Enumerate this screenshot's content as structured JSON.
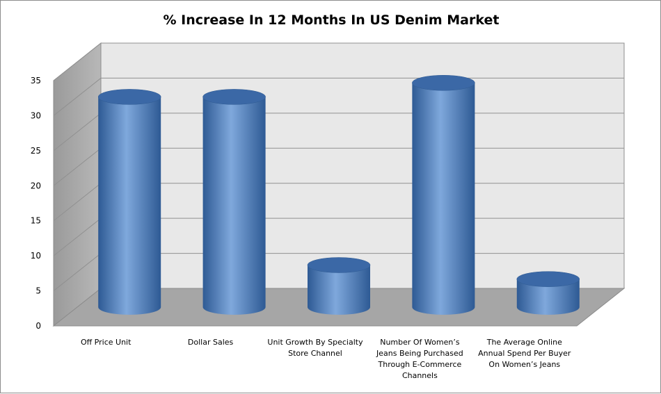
{
  "chart_data": {
    "type": "bar",
    "style": "3d-cylinder",
    "title": "% Increase In 12 Months In US Denim Market",
    "xlabel": "",
    "ylabel": "",
    "ylim": [
      0,
      35
    ],
    "yticks": [
      "0",
      "5",
      "10",
      "15",
      "20",
      "25",
      "30",
      "35"
    ],
    "grid": true,
    "legend": "none",
    "categories": [
      "Off Price Unit",
      "Dollar Sales",
      "Unit Growth  By Specialty Store Channel",
      "Number Of Women's Jeans Being Purchased Through E-Commerce Channels",
      "The Average Online Annual Spend Per Buyer On Women's Jeans"
    ],
    "category_lines": [
      [
        "Off Price Unit"
      ],
      [
        "Dollar Sales"
      ],
      [
        "Unit Growth  By Specialty",
        "Store Channel"
      ],
      [
        "Number Of Women’s",
        "Jeans Being Purchased",
        "Through E-Commerce",
        "Channels"
      ],
      [
        "The Average Online",
        "Annual Spend Per Buyer",
        "On Women’s Jeans"
      ]
    ],
    "values": [
      30,
      30,
      6,
      32,
      4
    ],
    "colors": {
      "bar": "#4f81bd",
      "bar_light": "#7fa8dc",
      "bar_dark": "#2e5a94",
      "bar_top": "#3b68a6",
      "back_wall": "#e8e8e8",
      "side_wall": "#b8b8b8",
      "floor": "#a6a6a6",
      "grid": "#909090"
    }
  }
}
